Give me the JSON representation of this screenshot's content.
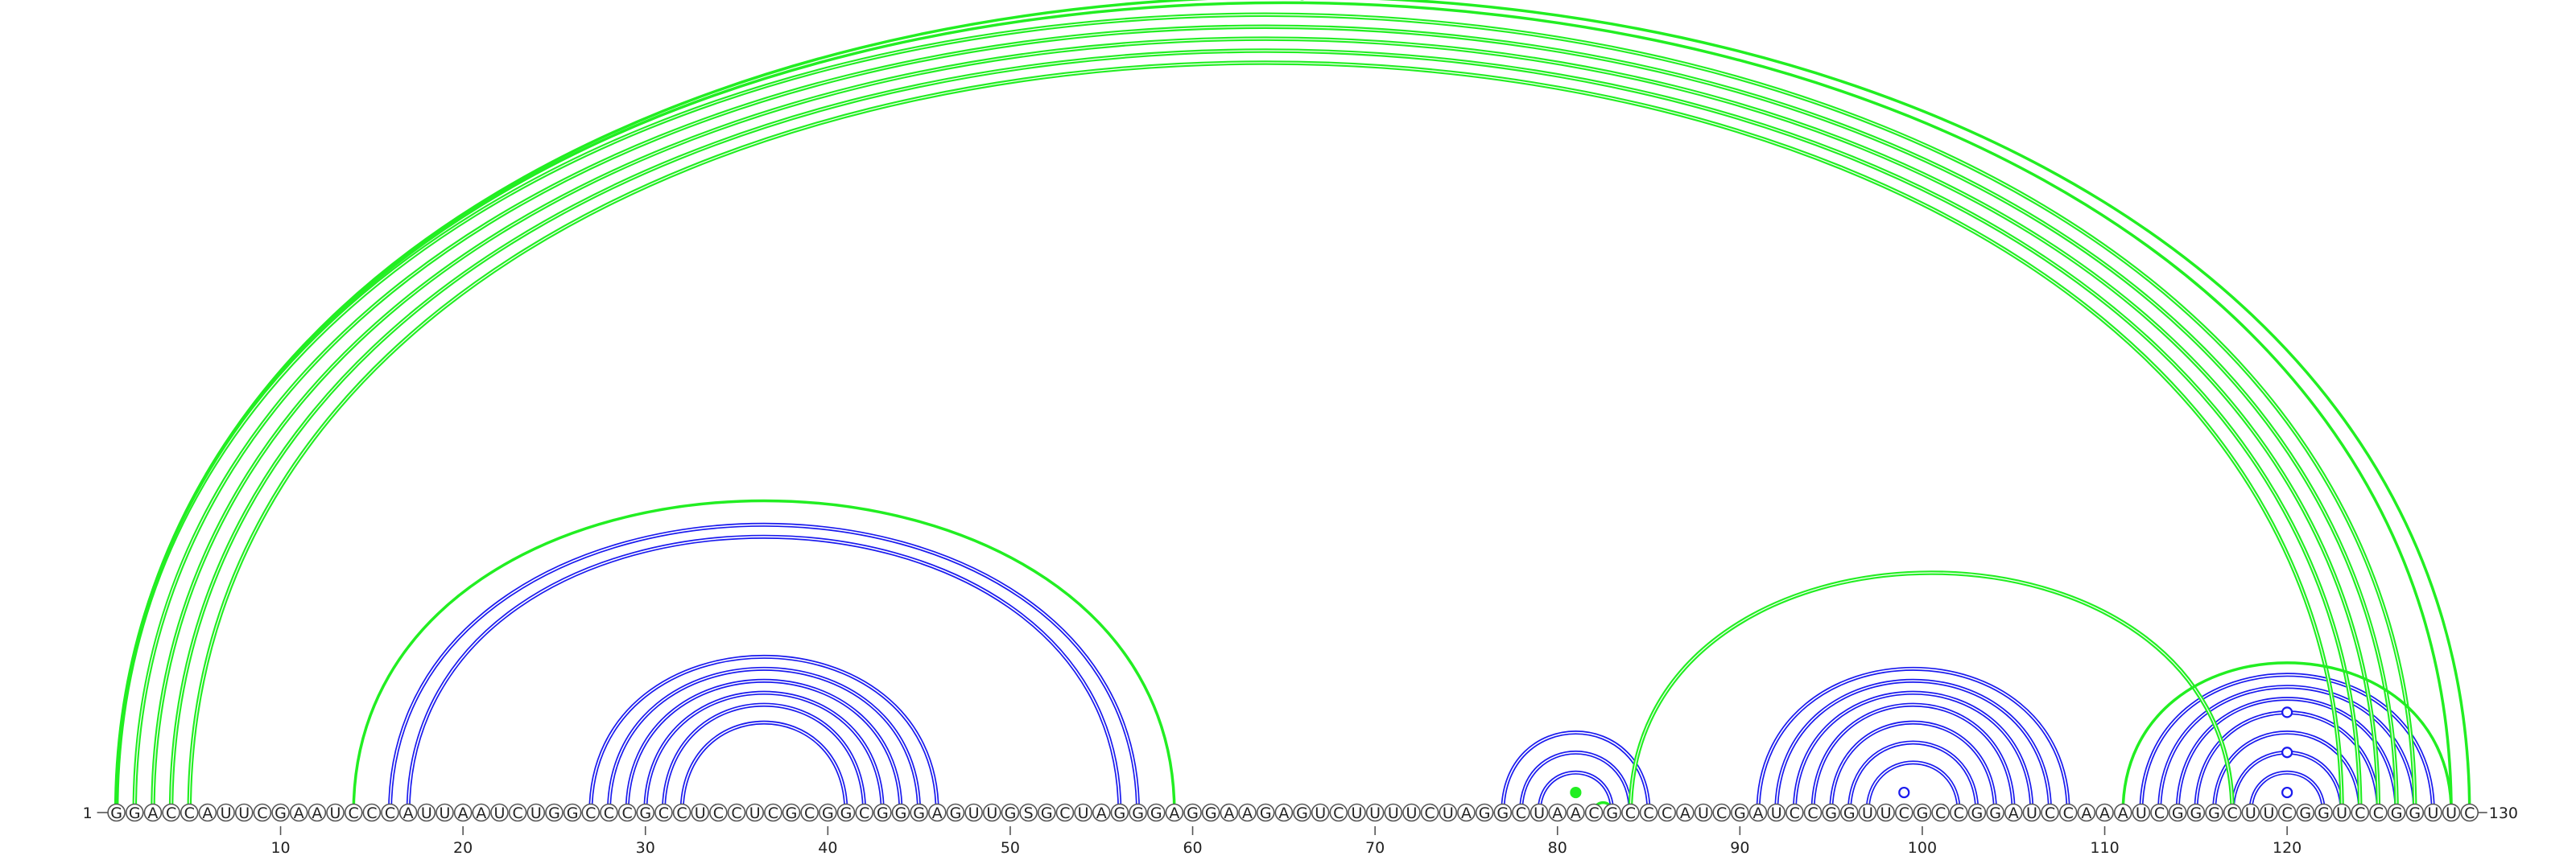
{
  "sequence": "GGACCAUUCGAAUCCCAUUAAUCUGGCCCGCCUCCUCGCGGCGGGAGUUGSGCUAGGGAGGAAGAGUCUUUUCUAGGCUAACGCCCAUCGAUCCGGUUCGCCGGAUCCAAAUCGGGCUUCGGUCCGGUUC",
  "start_label": "1",
  "end_label": "130",
  "axis_ticks": [
    10,
    20,
    30,
    40,
    50,
    60,
    70,
    80,
    90,
    100,
    110,
    120
  ],
  "colors": {
    "blue_pairs": "#1a1aee",
    "green_pairs": "#22ee22"
  },
  "blue_helices": [
    {
      "i": 16,
      "j": 57,
      "n": 2
    },
    {
      "i": 27,
      "j": 46,
      "n": 6
    },
    {
      "i": 77,
      "j": 85,
      "n": 3
    },
    {
      "i": 91,
      "j": 108,
      "n": 7
    },
    {
      "i": 112,
      "j": 128,
      "n": 7
    }
  ],
  "green_arcs": [
    {
      "i": 1,
      "j": 127,
      "w": 4
    },
    {
      "i": 2,
      "j": 126,
      "w": 4
    },
    {
      "i": 3,
      "j": 125,
      "w": 4
    },
    {
      "i": 4,
      "j": 124,
      "w": 4
    },
    {
      "i": 5,
      "j": 123,
      "w": 4
    },
    {
      "i": 1,
      "j": 130,
      "w": 2
    },
    {
      "i": 1,
      "j": 129,
      "w": 2
    },
    {
      "i": 14,
      "j": 59,
      "w": 2
    },
    {
      "i": 84,
      "j": 117,
      "w": 4
    },
    {
      "i": 111,
      "j": 129,
      "w": 2
    },
    {
      "i": 82,
      "j": 83,
      "w": 2
    }
  ],
  "markers": [
    {
      "pos": 66,
      "arc_i": 1,
      "arc_j": 130,
      "filled": false,
      "color": "green"
    },
    {
      "pos": 81,
      "arc_i": 80,
      "arc_j": 82,
      "filled": true,
      "color": "green"
    },
    {
      "pos": 99,
      "arc_i": 98,
      "arc_j": 100,
      "filled": false,
      "color": "blue"
    },
    {
      "pos": 120,
      "arc_i": 119,
      "arc_j": 121,
      "filled": false,
      "color": "blue"
    },
    {
      "pos": 120,
      "arc_i": 117,
      "arc_j": 123,
      "filled": false,
      "color": "blue"
    },
    {
      "pos": 120,
      "arc_i": 115,
      "arc_j": 125,
      "filled": false,
      "color": "blue"
    }
  ]
}
